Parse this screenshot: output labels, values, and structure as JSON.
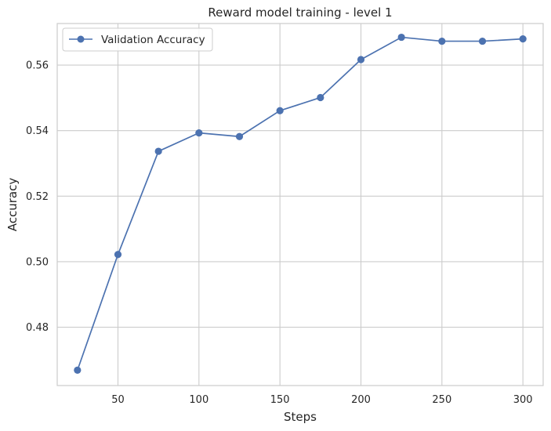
{
  "chart_data": {
    "type": "line",
    "title": "Reward model training - level 1",
    "xlabel": "Steps",
    "ylabel": "Accuracy",
    "xlim": [
      12.5,
      312.5
    ],
    "ylim": [
      0.4622,
      0.5727
    ],
    "xticks": [
      50,
      100,
      150,
      200,
      250,
      300
    ],
    "yticks": [
      0.48,
      0.5,
      0.52,
      0.54,
      0.56
    ],
    "xtick_labels": [
      "50",
      "100",
      "150",
      "200",
      "250",
      "300"
    ],
    "ytick_labels": [
      "0.48",
      "0.50",
      "0.52",
      "0.54",
      "0.56"
    ],
    "grid": true,
    "legend_position": "top-left",
    "series": [
      {
        "name": "Validation Accuracy",
        "color": "#4c72b0",
        "marker": "circle",
        "x": [
          25,
          50,
          75,
          100,
          125,
          150,
          175,
          200,
          225,
          250,
          275,
          300
        ],
        "y": [
          0.4669,
          0.5022,
          0.5337,
          0.5393,
          0.5382,
          0.5461,
          0.5501,
          0.5617,
          0.5685,
          0.5673,
          0.5673,
          0.568
        ]
      }
    ]
  }
}
